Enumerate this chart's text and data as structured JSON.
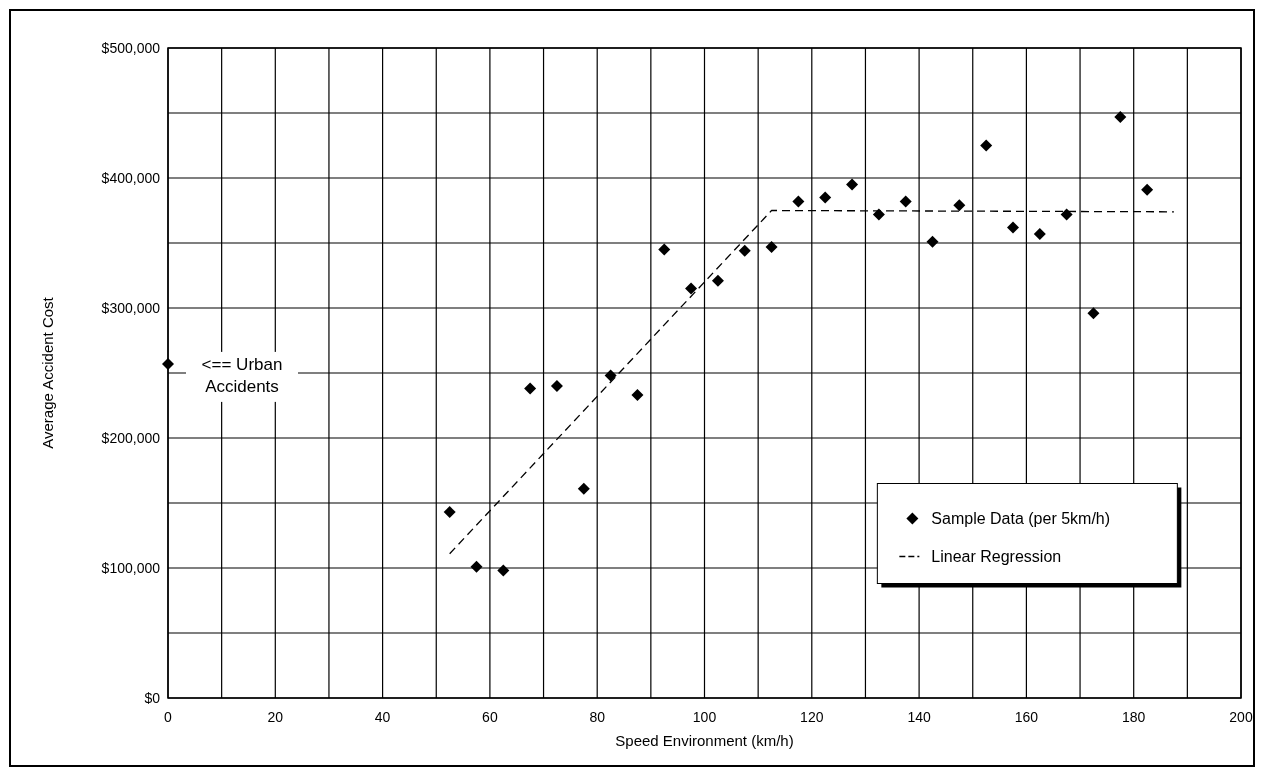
{
  "chart_data": {
    "type": "scatter",
    "xlabel": "Speed Environment (km/h)",
    "ylabel": "Average Accident Cost",
    "xlim": [
      0,
      200
    ],
    "xticks": [
      0,
      20,
      40,
      60,
      80,
      100,
      120,
      140,
      160,
      180,
      200
    ],
    "ylim": [
      0,
      500000
    ],
    "yticks": [
      {
        "value": 0,
        "label": "$0"
      },
      {
        "value": 100000,
        "label": "$100,000"
      },
      {
        "value": 200000,
        "label": "$200,000"
      },
      {
        "value": 300000,
        "label": "$300,000"
      },
      {
        "value": 400000,
        "label": "$400,000"
      },
      {
        "value": 500000,
        "label": "$500,000"
      }
    ],
    "grid": true,
    "legend": "bottom right",
    "series": [
      {
        "name": "Sample Data (per 5km/h)",
        "color": "#000000",
        "marker": "diamond",
        "x": [
          0,
          52.5,
          57.5,
          62.5,
          67.5,
          72.5,
          77.5,
          82.5,
          87.5,
          92.5,
          97.5,
          102.5,
          107.5,
          112.5,
          117.5,
          122.5,
          127.5,
          132.5,
          137.5,
          142.5,
          147.5,
          152.5,
          157.5,
          162.5,
          167.5,
          172.5,
          177.5,
          182.5
        ],
        "values": [
          257000,
          143000,
          101000,
          98000,
          238000,
          240000,
          161000,
          248000,
          233000,
          345000,
          315000,
          321000,
          344000,
          347000,
          382000,
          385000,
          395000,
          372000,
          382000,
          351000,
          379000,
          425000,
          362000,
          357000,
          372000,
          296000,
          447000,
          391000
        ]
      },
      {
        "name": "Linear Regression",
        "type": "line",
        "color": "#000000",
        "line_style": "dashed",
        "x": [
          52.5,
          112.5,
          187.5
        ],
        "values": [
          111000,
          375000,
          374000
        ]
      }
    ],
    "annotations": [
      {
        "text": "<== Urban Accidents",
        "x": 0,
        "y": 257000
      }
    ]
  }
}
